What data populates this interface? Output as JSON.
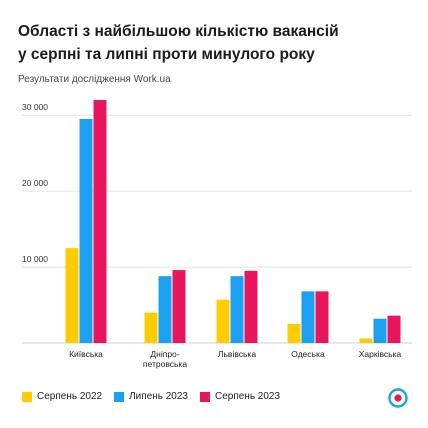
{
  "title_line1": "Області з найбільшою кількістю вакансій",
  "title_line2": "у серпні та липні проти минулого року",
  "subtitle": "Результати дослідження Work.ua",
  "legend_icon": "workua-logo-icon",
  "colors": {
    "serpen_2022": "#ffcc00",
    "lypen_2023": "#1ca0f2",
    "serpen_2023": "#e8175d",
    "gridline": "#e3e3e3",
    "axis_label": "#333333"
  },
  "chart_data": {
    "type": "bar",
    "title": "Області з найбільшою кількістю вакансій у серпні та липні проти минулого року",
    "xlabel": "",
    "ylabel": "",
    "ylim": [
      0,
      32000
    ],
    "yticks": [
      10000,
      20000,
      30000
    ],
    "ytick_labels": [
      "10 000",
      "20 000",
      "30 000"
    ],
    "grid": true,
    "legend_position": "bottom-left",
    "categories": [
      [
        "Київська"
      ],
      [
        "Дніпро-",
        "петровська"
      ],
      [
        "Львівська"
      ],
      [
        "Одеська"
      ],
      [
        "Харківська"
      ]
    ],
    "series": [
      {
        "name": "Серпень 2022",
        "color": "#ffcc00",
        "values": [
          12500,
          4000,
          5700,
          2500,
          600
        ]
      },
      {
        "name": "Липень 2023",
        "color": "#1ca0f2",
        "values": [
          29500,
          8800,
          8800,
          6800,
          3200
        ]
      },
      {
        "name": "Серпень 2023",
        "color": "#e8175d",
        "values": [
          32000,
          9600,
          9500,
          6800,
          3600
        ]
      }
    ]
  }
}
